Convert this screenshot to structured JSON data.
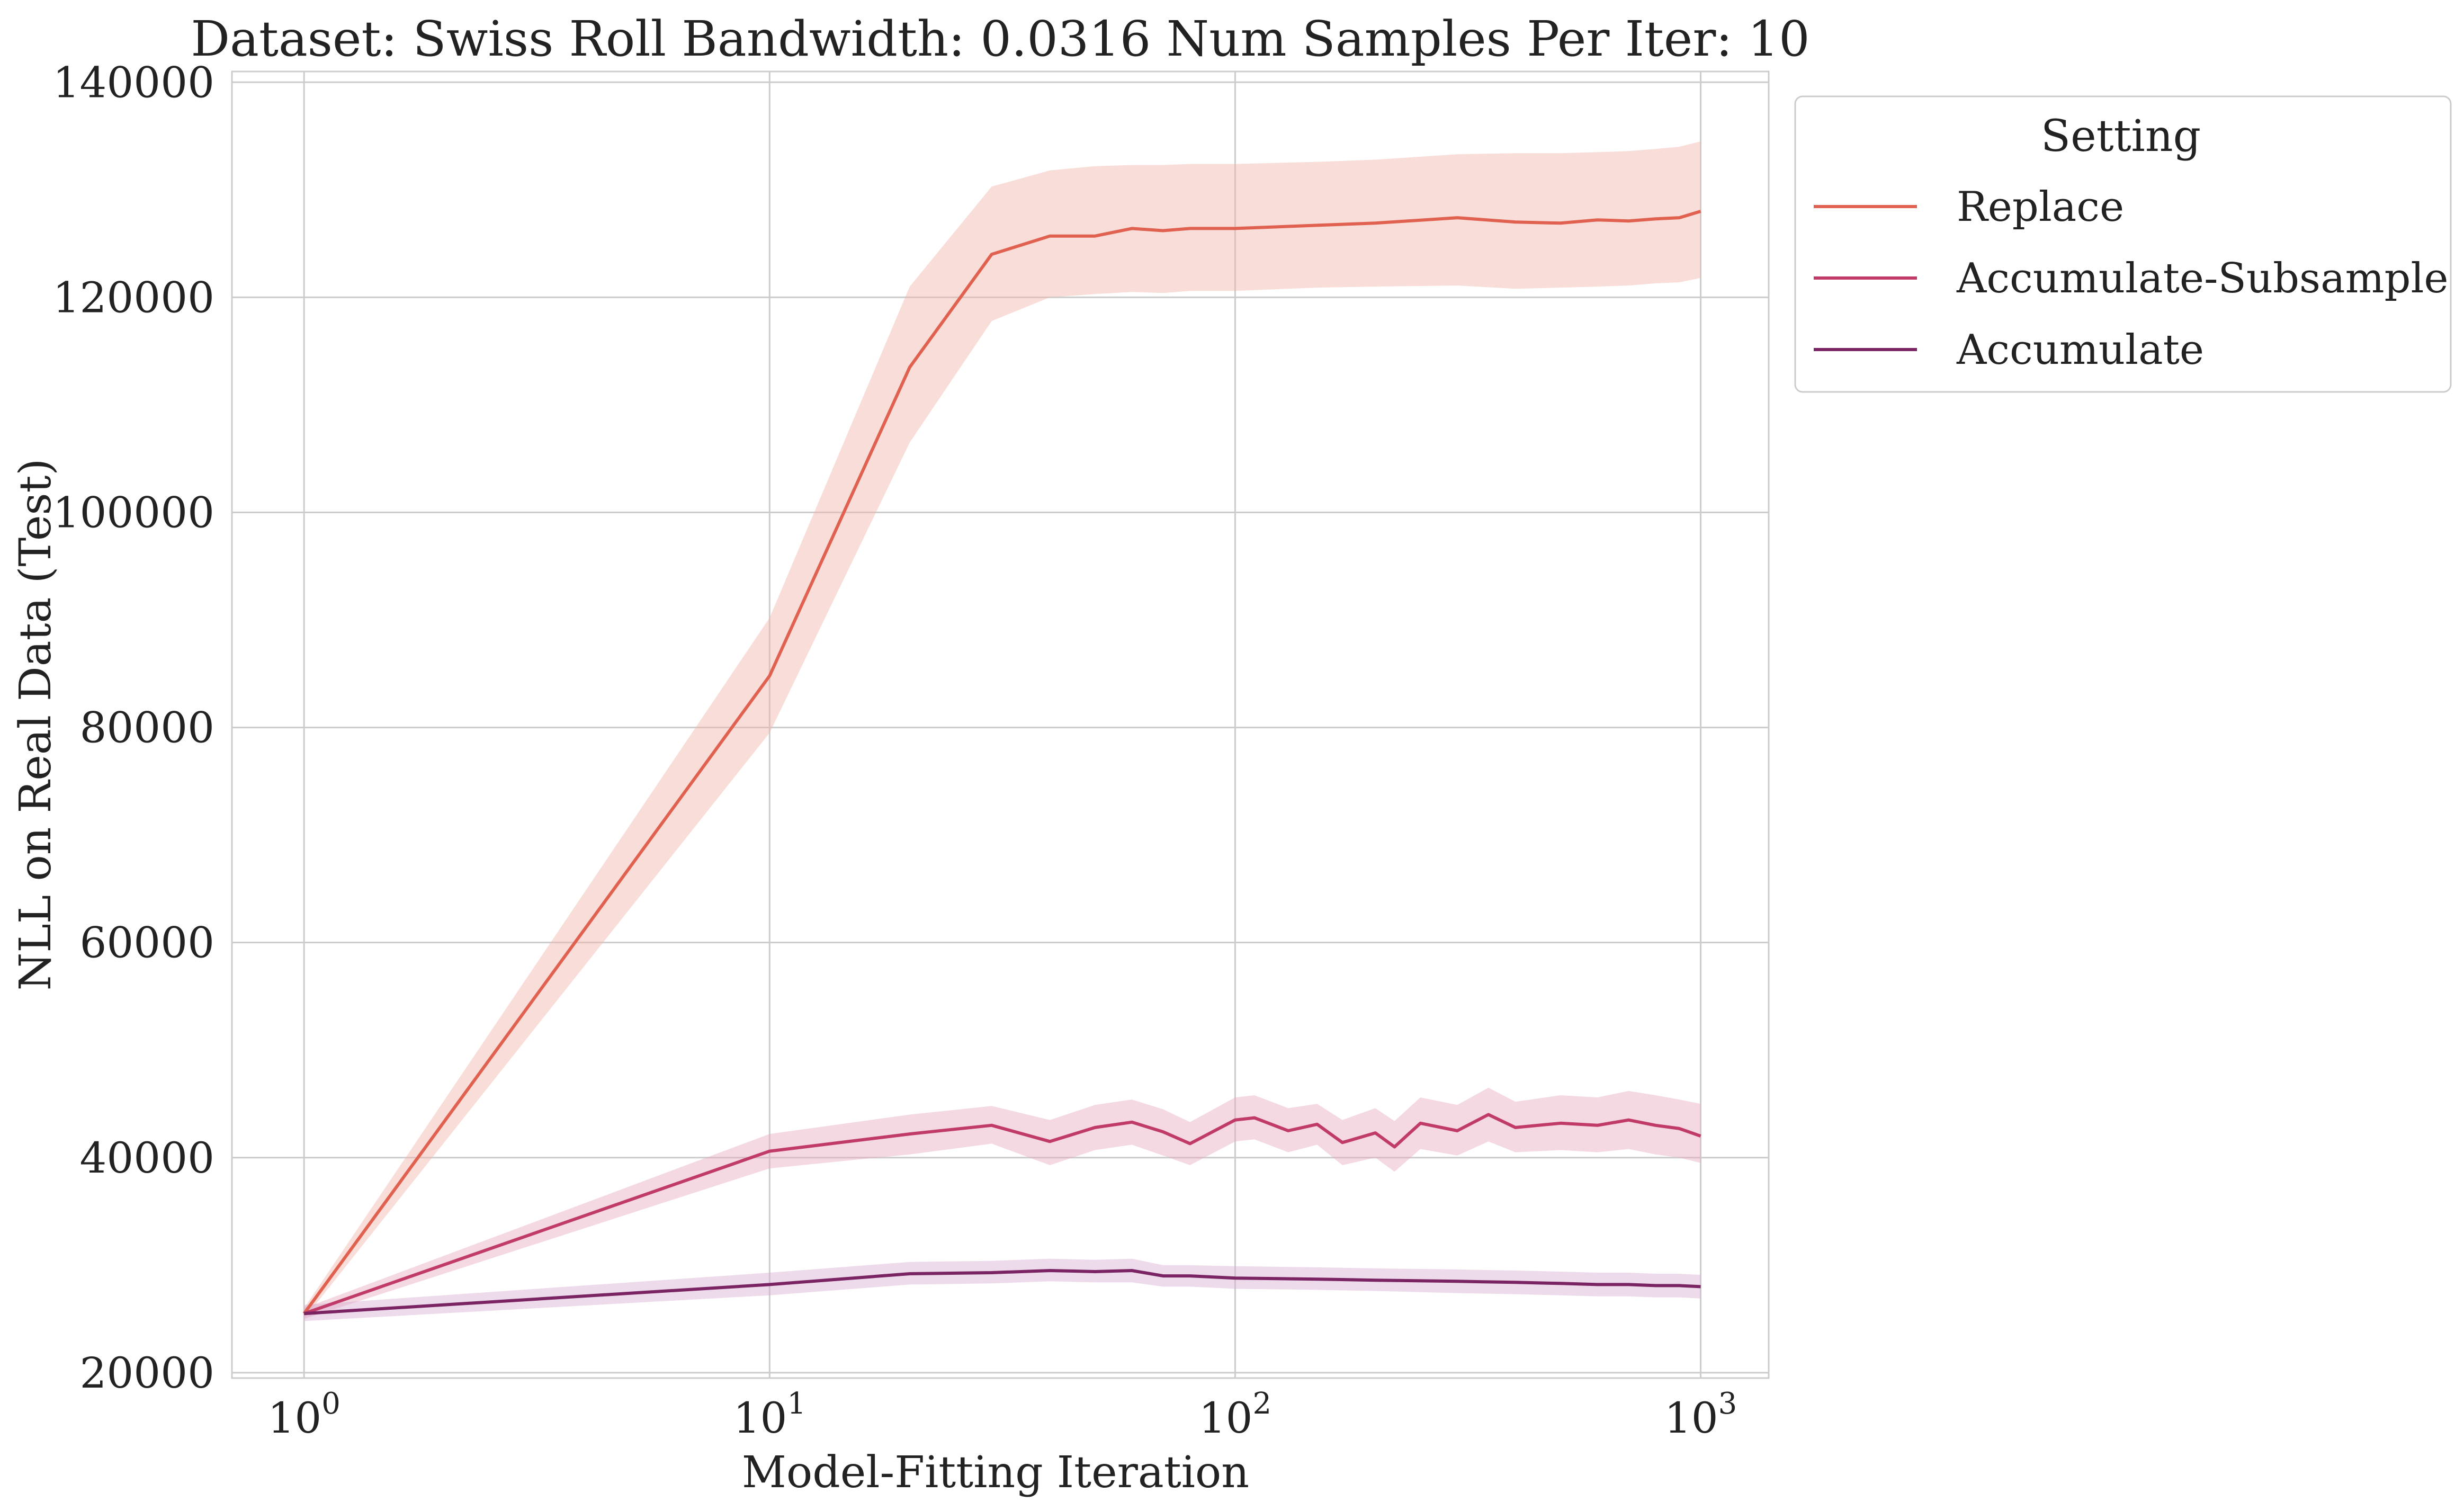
{
  "chart_data": {
    "type": "line",
    "title": "Dataset: Swiss Roll Bandwidth: 0.0316 Num Samples Per Iter: 10",
    "xlabel": "Model-Fitting Iteration",
    "ylabel": "NLL on Real Data (Test)",
    "x_scale": "log",
    "xlim": [
      0.7,
      1400
    ],
    "ylim": [
      19500,
      141000
    ],
    "grid": true,
    "x_ticks": [
      {
        "value": 1,
        "base": "10",
        "exp": "0"
      },
      {
        "value": 10,
        "base": "10",
        "exp": "1"
      },
      {
        "value": 100,
        "base": "10",
        "exp": "2"
      },
      {
        "value": 1000,
        "base": "10",
        "exp": "3"
      }
    ],
    "y_ticks": [
      {
        "value": 20000,
        "label": "20000"
      },
      {
        "value": 40000,
        "label": "40000"
      },
      {
        "value": 60000,
        "label": "60000"
      },
      {
        "value": 80000,
        "label": "80000"
      },
      {
        "value": 100000,
        "label": "100000"
      },
      {
        "value": 120000,
        "label": "120000"
      },
      {
        "value": 140000,
        "label": "140000"
      }
    ],
    "legend": {
      "title": "Setting",
      "position": "outside-upper-right"
    },
    "series": [
      {
        "name": "Replace",
        "color": "#e0614f",
        "band_color": "#f2b3a8",
        "x": [
          1,
          10,
          20,
          30,
          40,
          50,
          60,
          70,
          80,
          100,
          150,
          200,
          300,
          400,
          500,
          600,
          700,
          800,
          900,
          1000
        ],
        "y": [
          25500,
          84800,
          113500,
          124000,
          125700,
          125700,
          126400,
          126200,
          126400,
          126400,
          126700,
          126900,
          127400,
          127000,
          126900,
          127200,
          127100,
          127300,
          127400,
          128000
        ],
        "lower": [
          25000,
          79500,
          106500,
          117800,
          120000,
          120300,
          120500,
          120400,
          120600,
          120600,
          120900,
          121000,
          121100,
          120800,
          120900,
          121000,
          121100,
          121300,
          121400,
          121800
        ],
        "upper": [
          26000,
          90200,
          121000,
          130300,
          131800,
          132200,
          132300,
          132300,
          132400,
          132400,
          132600,
          132800,
          133300,
          133400,
          133400,
          133500,
          133600,
          133800,
          134000,
          134500
        ]
      },
      {
        "name": "Accumulate-Subsample",
        "color": "#c13b68",
        "band_color": "#e7a9bf",
        "x": [
          1,
          10,
          20,
          30,
          40,
          50,
          60,
          70,
          80,
          100,
          110,
          130,
          150,
          170,
          200,
          220,
          250,
          300,
          350,
          400,
          500,
          600,
          700,
          800,
          900,
          1000
        ],
        "y": [
          25500,
          40600,
          42200,
          43000,
          41500,
          42800,
          43300,
          42400,
          41300,
          43500,
          43700,
          42500,
          43100,
          41400,
          42300,
          41000,
          43200,
          42500,
          44000,
          42800,
          43200,
          43000,
          43500,
          43000,
          42700,
          42000
        ],
        "lower": [
          25000,
          39000,
          40300,
          41300,
          39300,
          40700,
          41200,
          40200,
          39300,
          41500,
          41700,
          40500,
          41200,
          39300,
          40000,
          38700,
          40800,
          40200,
          41500,
          40500,
          40700,
          40500,
          40800,
          40300,
          40000,
          39500
        ],
        "upper": [
          26000,
          42200,
          44000,
          44800,
          43500,
          44900,
          45400,
          44500,
          43300,
          45600,
          45800,
          44600,
          45000,
          43500,
          44600,
          43400,
          45600,
          44900,
          46500,
          45200,
          45800,
          45600,
          46200,
          45800,
          45400,
          45000
        ]
      },
      {
        "name": "Accumulate",
        "color": "#7a2464",
        "band_color": "#d6aed0",
        "x": [
          1,
          10,
          20,
          30,
          40,
          50,
          60,
          70,
          80,
          100,
          150,
          200,
          300,
          400,
          500,
          600,
          700,
          800,
          900,
          1000
        ],
        "y": [
          25500,
          28200,
          29200,
          29300,
          29500,
          29400,
          29500,
          29000,
          29000,
          28800,
          28700,
          28600,
          28500,
          28400,
          28300,
          28200,
          28200,
          28100,
          28100,
          28000
        ],
        "lower": [
          24800,
          27200,
          28200,
          28300,
          28500,
          28400,
          28400,
          28000,
          28000,
          27800,
          27700,
          27600,
          27400,
          27300,
          27200,
          27100,
          27100,
          27000,
          27000,
          26900
        ],
        "upper": [
          26300,
          29300,
          30300,
          30400,
          30600,
          30500,
          30600,
          30000,
          30000,
          29900,
          29800,
          29700,
          29600,
          29500,
          29400,
          29300,
          29300,
          29200,
          29200,
          29100
        ]
      }
    ]
  }
}
